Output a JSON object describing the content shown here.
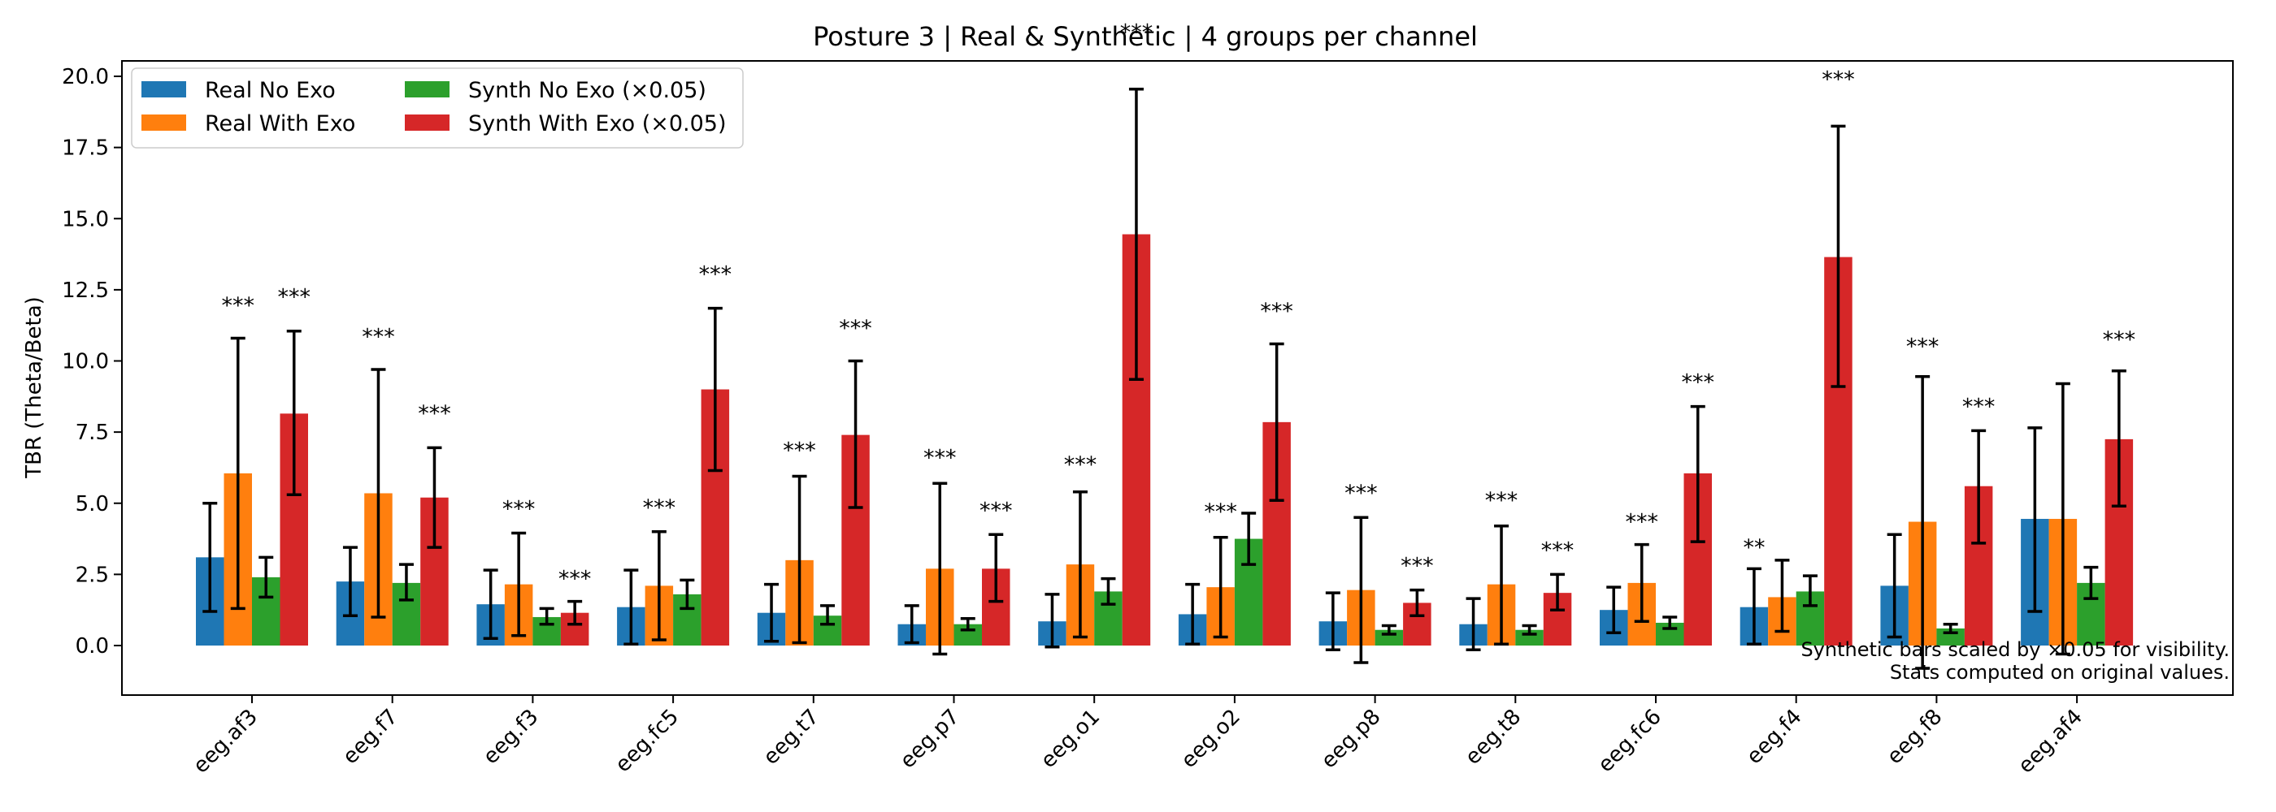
{
  "chart_data": {
    "type": "bar",
    "title": "Posture 3 | Real & Synthetic | 4 groups per channel",
    "xlabel": "",
    "ylabel": "TBR (Theta/Beta)",
    "ylim": [
      -1.8,
      20.6
    ],
    "yticks": [
      0.0,
      2.5,
      5.0,
      7.5,
      10.0,
      12.5,
      15.0,
      17.5,
      20.0
    ],
    "ytick_labels": [
      "0.0",
      "2.5",
      "5.0",
      "7.5",
      "10.0",
      "12.5",
      "15.0",
      "17.5",
      "20.0"
    ],
    "grid": false,
    "legend_position": "top-left",
    "categories": [
      "eeg.af3",
      "eeg.f7",
      "eeg.f3",
      "eeg.fc5",
      "eeg.t7",
      "eeg.p7",
      "eeg.o1",
      "eeg.o2",
      "eeg.p8",
      "eeg.t8",
      "eeg.fc6",
      "eeg.f4",
      "eeg.f8",
      "eeg.af4"
    ],
    "series": [
      {
        "name": "Real No Exo",
        "color": "#1f77b4",
        "values": [
          3.1,
          2.25,
          1.45,
          1.35,
          1.15,
          0.75,
          0.85,
          1.1,
          0.85,
          0.75,
          1.25,
          1.35,
          2.1,
          4.45
        ],
        "err_low": [
          1.2,
          1.05,
          0.25,
          0.05,
          0.15,
          0.1,
          -0.05,
          0.05,
          -0.15,
          -0.15,
          0.45,
          0.05,
          0.3,
          1.2
        ],
        "err_high": [
          5.0,
          3.45,
          2.65,
          2.65,
          2.15,
          1.4,
          1.8,
          2.15,
          1.85,
          1.65,
          2.05,
          2.7,
          3.9,
          7.65
        ]
      },
      {
        "name": "Real With Exo",
        "color": "#ff7f0e",
        "values": [
          6.05,
          5.35,
          2.15,
          2.1,
          3.0,
          2.7,
          2.85,
          2.05,
          1.95,
          2.15,
          2.2,
          1.7,
          4.35,
          4.45
        ],
        "err_low": [
          1.3,
          1.0,
          0.35,
          0.2,
          0.1,
          -0.3,
          0.3,
          0.3,
          -0.6,
          0.05,
          0.85,
          0.5,
          -0.8,
          -0.3
        ],
        "err_high": [
          10.8,
          9.7,
          3.95,
          4.0,
          5.95,
          5.7,
          5.4,
          3.8,
          4.5,
          4.2,
          3.55,
          3.0,
          9.45,
          9.2
        ]
      },
      {
        "name": "Synth No Exo (×0.05)",
        "color": "#2ca02c",
        "values": [
          2.4,
          2.2,
          1.0,
          1.8,
          1.05,
          0.75,
          1.9,
          3.75,
          0.55,
          0.55,
          0.8,
          1.9,
          0.6,
          2.2
        ],
        "err_low": [
          1.7,
          1.6,
          0.75,
          1.3,
          0.75,
          0.55,
          1.45,
          2.85,
          0.4,
          0.4,
          0.6,
          1.4,
          0.45,
          1.65
        ],
        "err_high": [
          3.1,
          2.85,
          1.3,
          2.3,
          1.4,
          0.95,
          2.35,
          4.65,
          0.7,
          0.7,
          1.0,
          2.45,
          0.75,
          2.75
        ]
      },
      {
        "name": "Synth With Exo (×0.05)",
        "color": "#d62728",
        "values": [
          8.15,
          5.2,
          1.15,
          9.0,
          7.4,
          2.7,
          14.45,
          7.85,
          1.5,
          1.85,
          6.05,
          13.65,
          5.6,
          7.25
        ],
        "err_low": [
          5.3,
          3.45,
          0.75,
          6.15,
          4.85,
          1.55,
          9.35,
          5.1,
          1.05,
          1.25,
          3.65,
          9.1,
          3.6,
          4.9
        ],
        "err_high": [
          11.05,
          6.95,
          1.55,
          11.85,
          10.0,
          3.9,
          19.55,
          10.6,
          1.95,
          2.5,
          8.4,
          18.25,
          7.55,
          9.65
        ]
      }
    ],
    "annotations": [
      {
        "category": 0,
        "series": 1,
        "text": "***",
        "y": 11.7
      },
      {
        "category": 0,
        "series": 3,
        "text": "***",
        "y": 12.0
      },
      {
        "category": 1,
        "series": 1,
        "text": "***",
        "y": 10.6
      },
      {
        "category": 1,
        "series": 3,
        "text": "***",
        "y": 7.9
      },
      {
        "category": 2,
        "series": 1,
        "text": "***",
        "y": 4.55
      },
      {
        "category": 2,
        "series": 3,
        "text": "***",
        "y": 2.1
      },
      {
        "category": 3,
        "series": 1,
        "text": "***",
        "y": 4.6
      },
      {
        "category": 3,
        "series": 3,
        "text": "***",
        "y": 12.8
      },
      {
        "category": 4,
        "series": 1,
        "text": "***",
        "y": 6.6
      },
      {
        "category": 4,
        "series": 3,
        "text": "***",
        "y": 10.9
      },
      {
        "category": 5,
        "series": 1,
        "text": "***",
        "y": 6.35
      },
      {
        "category": 5,
        "series": 3,
        "text": "***",
        "y": 4.5
      },
      {
        "category": 6,
        "series": 1,
        "text": "***",
        "y": 6.1
      },
      {
        "category": 6,
        "series": 3,
        "text": "***",
        "y": 21.3
      },
      {
        "category": 7,
        "series": 1,
        "text": "***",
        "y": 4.45
      },
      {
        "category": 7,
        "series": 3,
        "text": "***",
        "y": 11.5
      },
      {
        "category": 8,
        "series": 1,
        "text": "***",
        "y": 5.1
      },
      {
        "category": 8,
        "series": 3,
        "text": "***",
        "y": 2.55
      },
      {
        "category": 9,
        "series": 1,
        "text": "***",
        "y": 4.85
      },
      {
        "category": 9,
        "series": 3,
        "text": "***",
        "y": 3.1
      },
      {
        "category": 10,
        "series": 1,
        "text": "***",
        "y": 4.1
      },
      {
        "category": 10,
        "series": 3,
        "text": "***",
        "y": 9.0
      },
      {
        "category": 11,
        "series": 0,
        "text": "**",
        "y": 3.2
      },
      {
        "category": 11,
        "series": 3,
        "text": "***",
        "y": 19.65
      },
      {
        "category": 12,
        "series": 1,
        "text": "***",
        "y": 10.25
      },
      {
        "category": 12,
        "series": 3,
        "text": "***",
        "y": 8.15
      },
      {
        "category": 13,
        "series": 3,
        "text": "***",
        "y": 10.5
      }
    ],
    "footnote": [
      "Synthetic bars scaled by ×0.05 for visibility.",
      "Stats computed on original values."
    ]
  }
}
